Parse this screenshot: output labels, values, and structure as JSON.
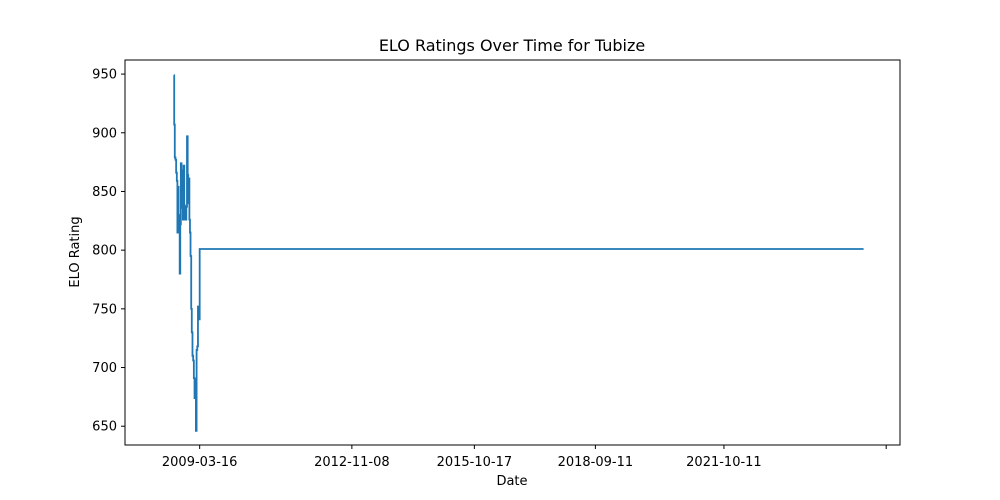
{
  "chart_data": {
    "type": "line",
    "title": "ELO Ratings Over Time for Tubize",
    "xlabel": "Date",
    "ylabel": "ELO Rating",
    "xlim": [
      "2007-06-01",
      "2025-12-31"
    ],
    "ylim": [
      634,
      962
    ],
    "x_ticks": [
      {
        "date": "2009-03-16",
        "label": "2009-03-16"
      },
      {
        "date": "2012-11-08",
        "label": "2012-11-08"
      },
      {
        "date": "2015-10-17",
        "label": "2015-10-17"
      },
      {
        "date": "2018-09-11",
        "label": "2018-09-11"
      },
      {
        "date": "2021-10-11",
        "label": "2021-10-11"
      },
      {
        "date": "2025-09-01",
        "label": ""
      }
    ],
    "y_ticks": [
      650,
      700,
      750,
      800,
      850,
      900,
      950
    ],
    "grid": false,
    "series": [
      {
        "name": "Tubize",
        "color": "#1f77b4",
        "points": [
          [
            "2008-08-01",
            949
          ],
          [
            "2008-08-05",
            907
          ],
          [
            "2008-08-10",
            879
          ],
          [
            "2008-08-16",
            877
          ],
          [
            "2008-08-22",
            866
          ],
          [
            "2008-08-28",
            859
          ],
          [
            "2008-09-02",
            815
          ],
          [
            "2008-09-07",
            854
          ],
          [
            "2008-09-12",
            830
          ],
          [
            "2008-09-17",
            818
          ],
          [
            "2008-09-22",
            780
          ],
          [
            "2008-09-27",
            822
          ],
          [
            "2008-10-02",
            874
          ],
          [
            "2008-10-08",
            836
          ],
          [
            "2008-10-14",
            868
          ],
          [
            "2008-10-20",
            826
          ],
          [
            "2008-10-26",
            872
          ],
          [
            "2008-11-01",
            838
          ],
          [
            "2008-11-07",
            826
          ],
          [
            "2008-11-13",
            826
          ],
          [
            "2008-11-19",
            837
          ],
          [
            "2008-11-25",
            897
          ],
          [
            "2008-12-01",
            864
          ],
          [
            "2008-12-06",
            840
          ],
          [
            "2008-12-11",
            861
          ],
          [
            "2008-12-16",
            826
          ],
          [
            "2008-12-21",
            815
          ],
          [
            "2008-12-26",
            795
          ],
          [
            "2009-01-01",
            750
          ],
          [
            "2009-01-06",
            730
          ],
          [
            "2009-01-12",
            710
          ],
          [
            "2009-01-18",
            706
          ],
          [
            "2009-01-24",
            691
          ],
          [
            "2009-01-30",
            674
          ],
          [
            "2009-02-05",
            690
          ],
          [
            "2009-02-11",
            646
          ],
          [
            "2009-02-17",
            715
          ],
          [
            "2009-02-23",
            718
          ],
          [
            "2009-03-01",
            752
          ],
          [
            "2009-03-07",
            741
          ],
          [
            "2009-03-16",
            801
          ],
          [
            "2025-02-15",
            801
          ]
        ]
      }
    ]
  }
}
